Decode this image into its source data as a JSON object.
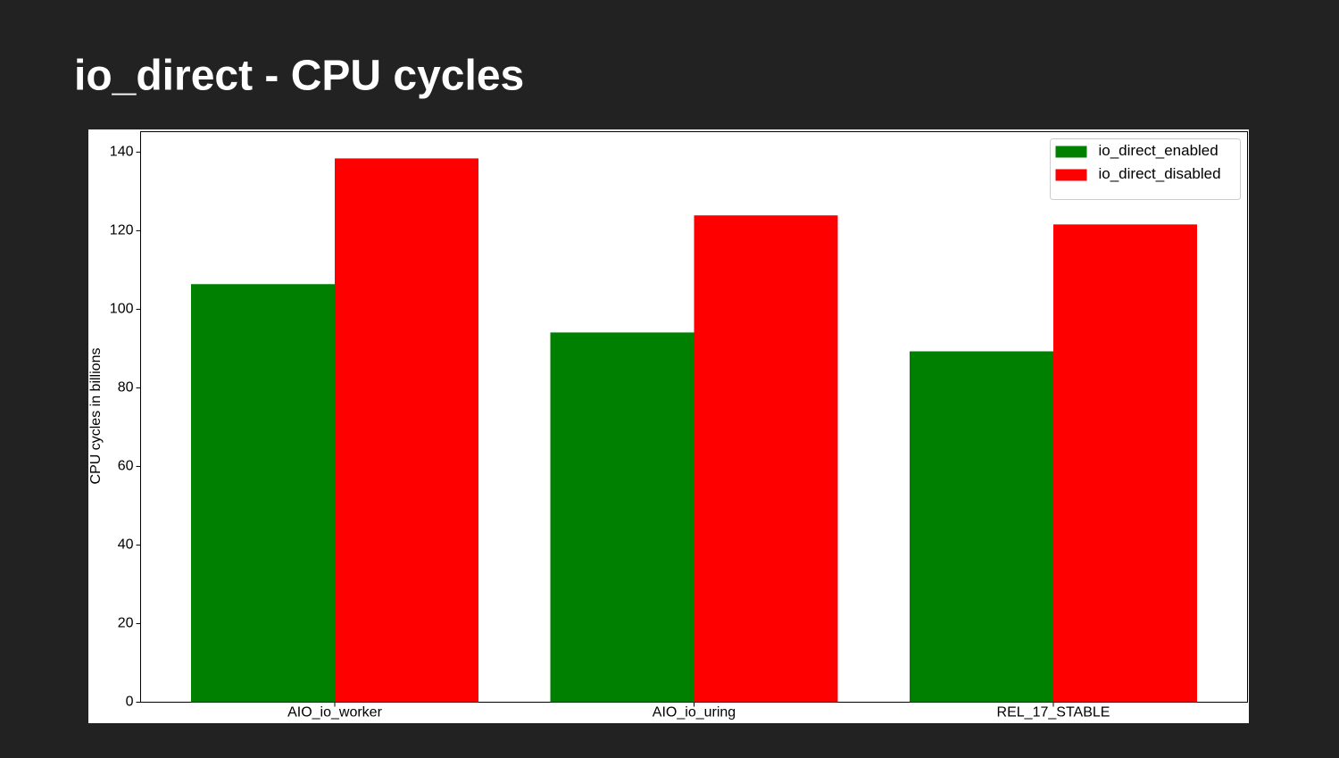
{
  "slide": {
    "title": "io_direct - CPU cycles"
  },
  "chart_data": {
    "type": "bar",
    "y_label": "CPU cycles in billions",
    "categories": [
      "AIO_io_worker",
      "AIO_io_uring",
      "REL_17_STABLE"
    ],
    "series": [
      {
        "name": "io_direct_enabled",
        "color": "#008000",
        "values": [
          106.4,
          94.1,
          89.3
        ]
      },
      {
        "name": "io_direct_disabled",
        "color": "#ff0000",
        "values": [
          138.4,
          123.9,
          121.6
        ]
      }
    ],
    "ylim": [
      0,
      145.2
    ],
    "yticks": [
      0,
      20,
      40,
      60,
      80,
      100,
      120,
      140
    ],
    "legend": "upper-right",
    "grid": false
  }
}
